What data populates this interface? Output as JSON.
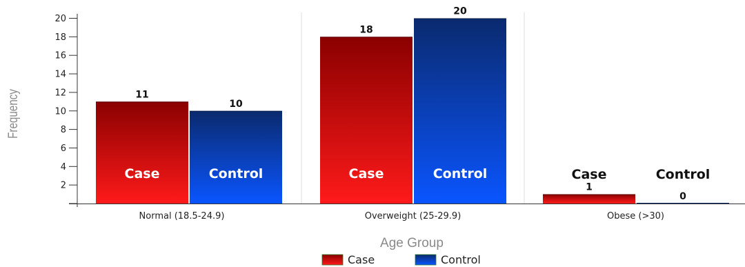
{
  "chart_data": {
    "type": "bar",
    "title": "",
    "xlabel": "Age Group",
    "ylabel": "Frequency",
    "categories": [
      "Normal (18.5-24.9)",
      "Overweight (25-29.9)",
      "Obese (>30)"
    ],
    "series": [
      {
        "name": "Case",
        "values": [
          11,
          18,
          1
        ],
        "color_top": "#8a0000",
        "color_bottom": "#ff1a1a"
      },
      {
        "name": "Control",
        "values": [
          10,
          20,
          0
        ],
        "color_top": "#0a2a6e",
        "color_bottom": "#0a55ff"
      }
    ],
    "ylim": [
      0,
      20
    ],
    "yticks": [
      2,
      4,
      6,
      8,
      10,
      12,
      14,
      16,
      18,
      20
    ],
    "grid": "vertical category separators",
    "legend": "bottom-center",
    "show_values": true,
    "show_series_labels": true
  }
}
